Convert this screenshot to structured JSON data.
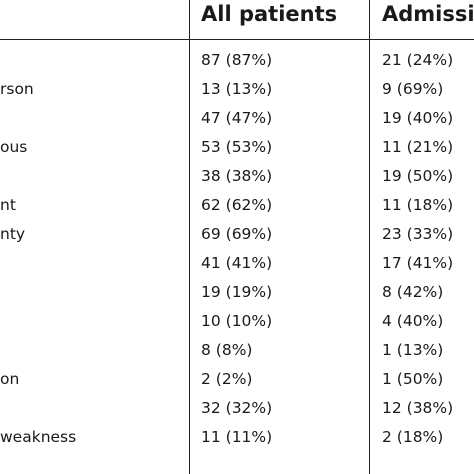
{
  "table": {
    "headers": [
      "",
      "All patients",
      "Admissio"
    ],
    "rows": [
      [
        "",
        "87 (87%)",
        "21 (24%)"
      ],
      [
        "rson",
        "13 (13%)",
        "9 (69%)"
      ],
      [
        "",
        "47 (47%)",
        "19 (40%)"
      ],
      [
        "ous",
        "53 (53%)",
        "11 (21%)"
      ],
      [
        "",
        "38 (38%)",
        "19 (50%)"
      ],
      [
        "nt",
        "62 (62%)",
        "11 (18%)"
      ],
      [
        "nty",
        "69 (69%)",
        "23 (33%)"
      ],
      [
        "",
        "41 (41%)",
        "17 (41%)"
      ],
      [
        "",
        "19 (19%)",
        "8 (42%)"
      ],
      [
        "",
        "10 (10%)",
        "4 (40%)"
      ],
      [
        "",
        "8 (8%)",
        "1 (13%)"
      ],
      [
        "on",
        "2 (2%)",
        "1 (50%)"
      ],
      [
        "",
        "32 (32%)",
        "12 (38%)"
      ],
      [
        "weakness",
        "11 (11%)",
        "2 (18%)"
      ]
    ]
  }
}
